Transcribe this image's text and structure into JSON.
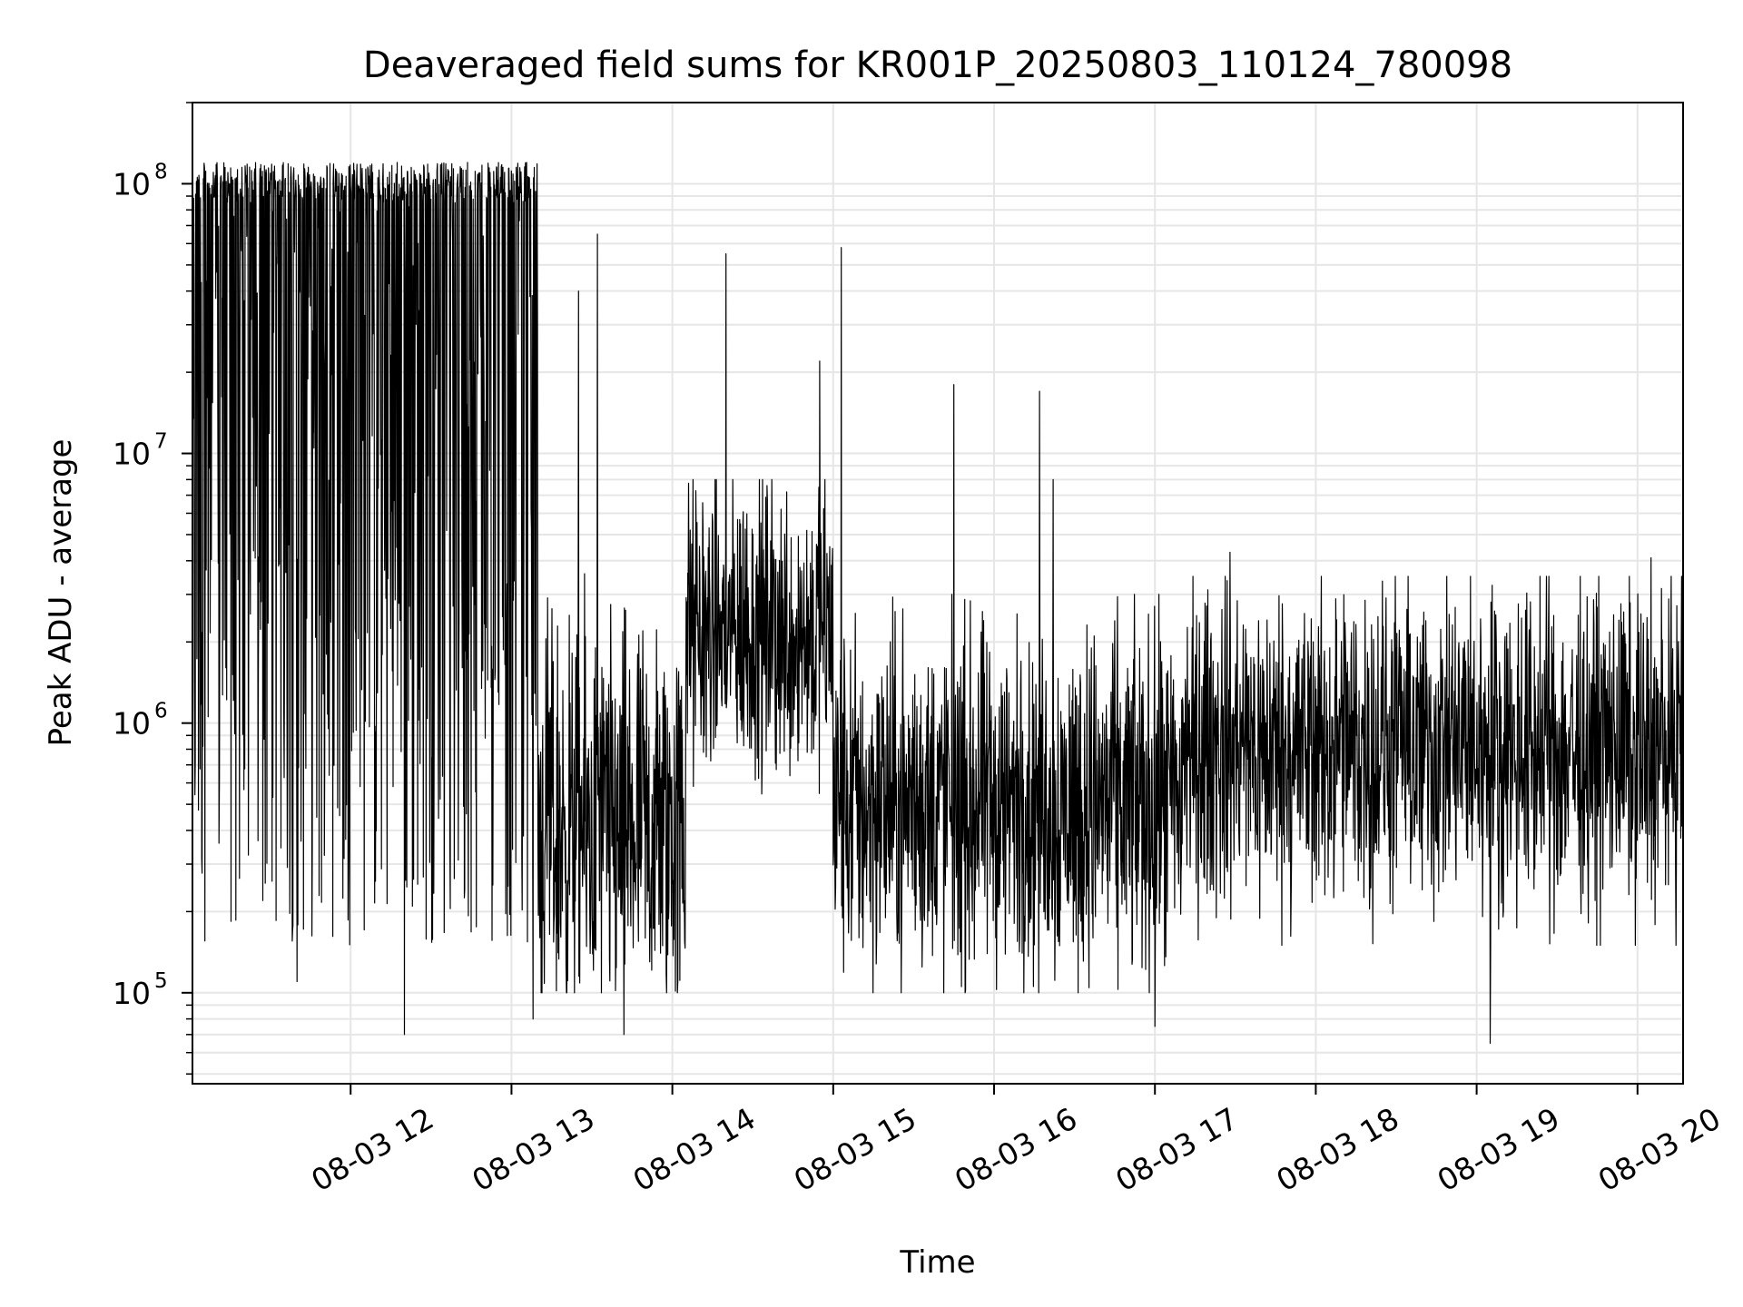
{
  "chart_data": {
    "type": "line",
    "title": "Deaveraged field sums for KR001P_20250803_110124_780098",
    "xlabel": "Time",
    "ylabel": "Peak ADU - average",
    "yscale": "log",
    "ylim": [
      46000,
      200000000
    ],
    "xlim": [
      "2025-08-03 11:01",
      "2025-08-03 20:17"
    ],
    "grid": true,
    "line_color": "#000000",
    "grid_color": "#e6e6e6",
    "x_ticks": [
      {
        "value": "2025-08-03 12:00",
        "label": "08-03 12"
      },
      {
        "value": "2025-08-03 13:00",
        "label": "08-03 13"
      },
      {
        "value": "2025-08-03 14:00",
        "label": "08-03 14"
      },
      {
        "value": "2025-08-03 15:00",
        "label": "08-03 15"
      },
      {
        "value": "2025-08-03 16:00",
        "label": "08-03 16"
      },
      {
        "value": "2025-08-03 17:00",
        "label": "08-03 17"
      },
      {
        "value": "2025-08-03 18:00",
        "label": "08-03 18"
      },
      {
        "value": "2025-08-03 19:00",
        "label": "08-03 19"
      },
      {
        "value": "2025-08-03 20:00",
        "label": "08-03 20"
      }
    ],
    "y_ticks": [
      {
        "value": 100000,
        "base": "10",
        "exp": "5"
      },
      {
        "value": 1000000,
        "base": "10",
        "exp": "6"
      },
      {
        "value": 10000000,
        "base": "10",
        "exp": "7"
      },
      {
        "value": 100000000,
        "base": "10",
        "exp": "8"
      }
    ],
    "series": [
      {
        "values_envelope": [
          {
            "start": "2025-08-03 11:01",
            "end": "2025-08-03 13:10",
            "low": 150000,
            "high": 120000000,
            "typical": 30000000,
            "note_spikes": [
              {
                "time": "2025-08-03 11:40",
                "value": 110000
              },
              {
                "time": "2025-08-03 12:20",
                "value": 70000
              },
              {
                "time": "2025-08-03 13:08",
                "value": 80000
              }
            ]
          },
          {
            "start": "2025-08-03 13:10",
            "end": "2025-08-03 14:05",
            "low": 100000,
            "high": 5000000,
            "typical": 400000,
            "note_spikes": [
              {
                "time": "2025-08-03 13:32",
                "value": 65000000
              },
              {
                "time": "2025-08-03 13:25",
                "value": 40000000
              },
              {
                "time": "2025-08-03 13:42",
                "value": 70000
              }
            ]
          },
          {
            "start": "2025-08-03 14:05",
            "end": "2025-08-03 15:00",
            "low": 400000,
            "high": 8000000,
            "typical": 2200000,
            "note_spikes": [
              {
                "time": "2025-08-03 14:20",
                "value": 55000000
              },
              {
                "time": "2025-08-03 14:55",
                "value": 22000000
              }
            ]
          },
          {
            "start": "2025-08-03 15:00",
            "end": "2025-08-03 17:10",
            "low": 100000,
            "high": 3000000,
            "typical": 500000,
            "note_spikes": [
              {
                "time": "2025-08-03 15:03",
                "value": 58000000
              },
              {
                "time": "2025-08-03 15:45",
                "value": 18000000
              },
              {
                "time": "2025-08-03 16:17",
                "value": 17000000
              },
              {
                "time": "2025-08-03 16:22",
                "value": 8000000
              },
              {
                "time": "2025-08-03 17:00",
                "value": 75000
              }
            ]
          },
          {
            "start": "2025-08-03 17:10",
            "end": "2025-08-03 20:17",
            "low": 150000,
            "high": 3500000,
            "typical": 800000,
            "note_spikes": [
              {
                "time": "2025-08-03 17:28",
                "value": 4300000
              },
              {
                "time": "2025-08-03 19:05",
                "value": 65000
              },
              {
                "time": "2025-08-03 20:05",
                "value": 4100000
              }
            ]
          }
        ]
      }
    ]
  }
}
